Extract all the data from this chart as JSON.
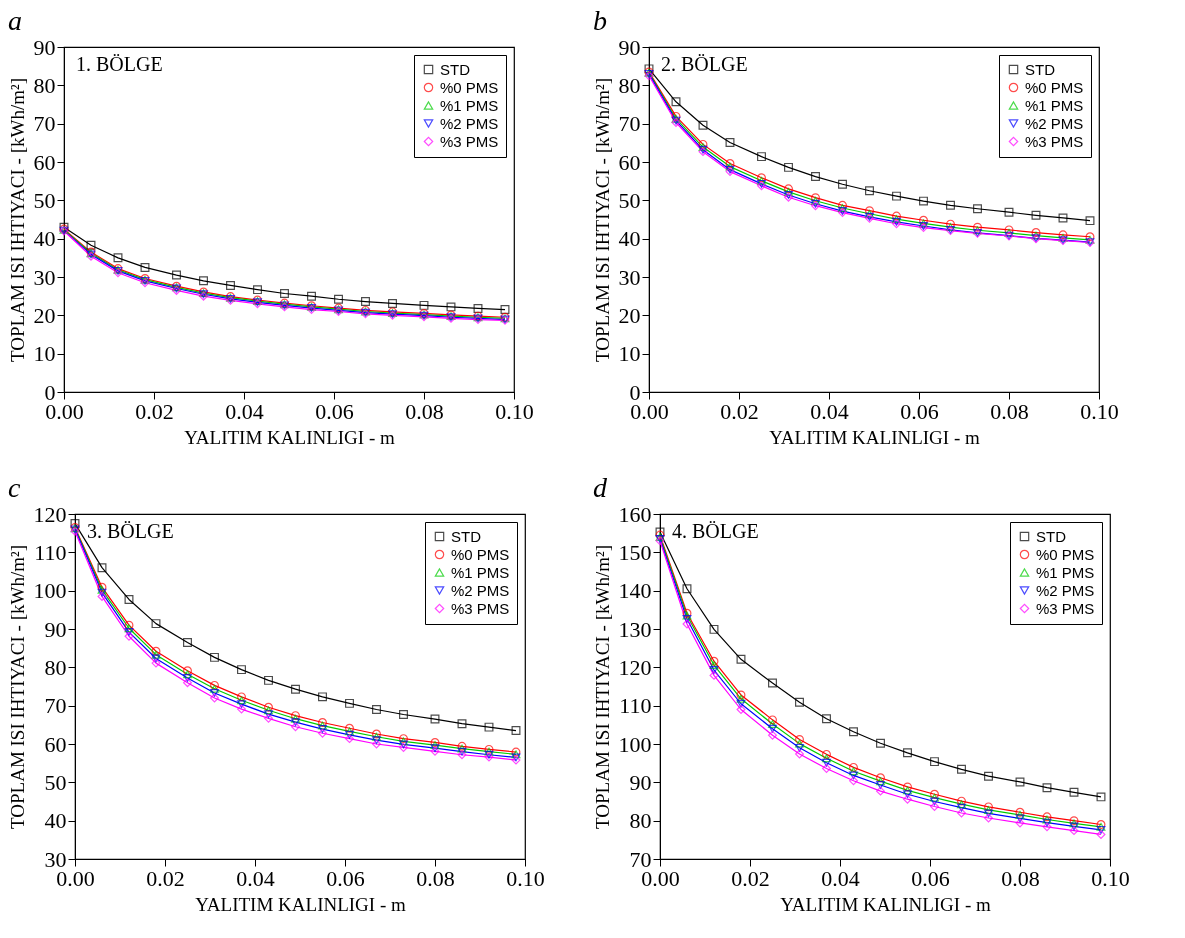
{
  "chart_data": [
    {
      "type": "line",
      "title": "a",
      "xlabel": "YALITIM KALINLIGI - m",
      "ylabel": "TOPLAM ISI IHTIYACI - [kWh/m²]",
      "annotations": [
        "1. BÖLGE"
      ],
      "legend": "top right",
      "grid": false,
      "x": [
        0,
        0.006,
        0.012,
        0.018,
        0.025,
        0.031,
        0.037,
        0.043,
        0.049,
        0.055,
        0.061,
        0.067,
        0.073,
        0.08,
        0.086,
        0.092,
        0.098
      ],
      "xlim": [
        0,
        0.1
      ],
      "xticks": [
        {
          "value": 0,
          "label": "0.00"
        },
        {
          "value": 0.02,
          "label": "0.02"
        },
        {
          "value": 0.04,
          "label": "0.04"
        },
        {
          "value": 0.06,
          "label": "0.06"
        },
        {
          "value": 0.08,
          "label": "0.08"
        },
        {
          "value": 0.1,
          "label": "0.10"
        }
      ],
      "ylim": [
        0,
        90
      ],
      "yticks": [
        0,
        10,
        20,
        30,
        40,
        50,
        60,
        70,
        80,
        90
      ],
      "series": [
        {
          "name": "STD",
          "color": "#000000",
          "marker": "square",
          "values": [
            43,
            38.3,
            35,
            32.5,
            30.5,
            29,
            27.8,
            26.7,
            25.7,
            25,
            24.2,
            23.6,
            23.1,
            22.6,
            22.2,
            21.8,
            21.5
          ]
        },
        {
          "name": "%0 PMS",
          "color": "#ff0000",
          "marker": "circle",
          "values": [
            42.5,
            36.5,
            32.2,
            29.6,
            27.6,
            26.1,
            24.9,
            24,
            23.2,
            22.5,
            21.9,
            21.3,
            20.9,
            20.5,
            20.1,
            19.8,
            19.5
          ]
        },
        {
          "name": "%1 PMS",
          "color": "#00cc00",
          "marker": "triangle",
          "values": [
            42.3,
            36.2,
            31.9,
            29.3,
            27.3,
            25.8,
            24.6,
            23.7,
            22.9,
            22.2,
            21.6,
            21,
            20.6,
            20.2,
            19.8,
            19.5,
            19.2
          ]
        },
        {
          "name": "%2 PMS",
          "color": "#0000ff",
          "marker": "triangle-down",
          "values": [
            42.1,
            35.9,
            31.6,
            29,
            27,
            25.5,
            24.3,
            23.4,
            22.6,
            21.9,
            21.3,
            20.7,
            20.3,
            19.9,
            19.5,
            19.2,
            18.9
          ]
        },
        {
          "name": "%3 PMS",
          "color": "#ff00ff",
          "marker": "diamond",
          "values": [
            42,
            35.4,
            31.1,
            28.5,
            26.5,
            25,
            23.9,
            23,
            22.2,
            21.5,
            21,
            20.4,
            20,
            19.6,
            19.2,
            18.9,
            18.7
          ]
        }
      ]
    },
    {
      "type": "line",
      "title": "b",
      "xlabel": "YALITIM KALINLIGI - m",
      "ylabel": "TOPLAM ISI IHTIYACI - [kWh/m²]",
      "annotations": [
        "2. BÖLGE"
      ],
      "legend": "top right",
      "grid": false,
      "x": [
        0,
        0.006,
        0.012,
        0.018,
        0.025,
        0.031,
        0.037,
        0.043,
        0.049,
        0.055,
        0.061,
        0.067,
        0.073,
        0.08,
        0.086,
        0.092,
        0.098
      ],
      "xlim": [
        0,
        0.1
      ],
      "xticks": [
        {
          "value": 0,
          "label": "0.00"
        },
        {
          "value": 0.02,
          "label": "0.02"
        },
        {
          "value": 0.04,
          "label": "0.04"
        },
        {
          "value": 0.06,
          "label": "0.06"
        },
        {
          "value": 0.08,
          "label": "0.08"
        },
        {
          "value": 0.1,
          "label": "0.10"
        }
      ],
      "ylim": [
        0,
        90
      ],
      "yticks": [
        0,
        10,
        20,
        30,
        40,
        50,
        60,
        70,
        80,
        90
      ],
      "series": [
        {
          "name": "STD",
          "color": "#000000",
          "marker": "square",
          "values": [
            84.3,
            75.7,
            69.6,
            65.1,
            61.4,
            58.6,
            56.2,
            54.2,
            52.5,
            51.1,
            49.8,
            48.7,
            47.8,
            46.9,
            46.1,
            45.4,
            44.7
          ]
        },
        {
          "name": "%0 PMS",
          "color": "#ff0000",
          "marker": "circle",
          "values": [
            83.5,
            71.9,
            64.6,
            59.6,
            55.9,
            53,
            50.7,
            48.7,
            47.3,
            45.9,
            44.8,
            43.8,
            43,
            42.3,
            41.6,
            41,
            40.5
          ]
        },
        {
          "name": "%1 PMS",
          "color": "#00cc00",
          "marker": "triangle",
          "values": [
            83.3,
            71.3,
            63.9,
            58.8,
            55.1,
            52.2,
            49.9,
            48,
            46.5,
            45.1,
            44,
            43,
            42.2,
            41.5,
            40.8,
            40.2,
            39.7
          ]
        },
        {
          "name": "%2 PMS",
          "color": "#0000ff",
          "marker": "triangle-down",
          "values": [
            83,
            70.8,
            63.2,
            58,
            54.3,
            51.4,
            49.1,
            47.2,
            45.7,
            44.4,
            43.3,
            42.3,
            41.5,
            40.8,
            40.1,
            39.6,
            39.1
          ]
        },
        {
          "name": "%3 PMS",
          "color": "#ff00ff",
          "marker": "diamond",
          "values": [
            82.5,
            70.3,
            62.7,
            57.5,
            53.8,
            50.8,
            48.6,
            46.8,
            45.3,
            43.9,
            42.9,
            42.1,
            41.4,
            40.7,
            40,
            39.5,
            39
          ]
        }
      ]
    },
    {
      "type": "line",
      "title": "c",
      "xlabel": "YALITIM KALINLIGI - m",
      "ylabel": "TOPLAM ISI IHTIYACI - [kWh/m²]",
      "annotations": [
        "3. BÖLGE"
      ],
      "legend": "top right",
      "grid": false,
      "x": [
        0,
        0.006,
        0.012,
        0.018,
        0.025,
        0.031,
        0.037,
        0.043,
        0.049,
        0.055,
        0.061,
        0.067,
        0.073,
        0.08,
        0.086,
        0.092,
        0.098
      ],
      "xlim": [
        0,
        0.1
      ],
      "xticks": [
        {
          "value": 0,
          "label": "0.00"
        },
        {
          "value": 0.02,
          "label": "0.02"
        },
        {
          "value": 0.04,
          "label": "0.04"
        },
        {
          "value": 0.06,
          "label": "0.06"
        },
        {
          "value": 0.08,
          "label": "0.08"
        },
        {
          "value": 0.1,
          "label": "0.10"
        }
      ],
      "ylim": [
        30,
        120
      ],
      "yticks": [
        30,
        40,
        50,
        60,
        70,
        80,
        90,
        100,
        110,
        120
      ],
      "series": [
        {
          "name": "STD",
          "color": "#000000",
          "marker": "square",
          "values": [
            117.5,
            106,
            97.7,
            91.4,
            86.5,
            82.6,
            79.4,
            76.6,
            74.3,
            72.3,
            70.6,
            69,
            67.7,
            66.5,
            65.3,
            64.4,
            63.5
          ]
        },
        {
          "name": "%0 PMS",
          "color": "#ff0000",
          "marker": "circle",
          "values": [
            116.5,
            100.9,
            91,
            84.2,
            79.1,
            75.3,
            72.3,
            69.6,
            67.4,
            65.6,
            64.1,
            62.6,
            61.4,
            60.4,
            59.4,
            58.6,
            57.9
          ]
        },
        {
          "name": "%1 PMS",
          "color": "#00cc00",
          "marker": "triangle",
          "values": [
            116.3,
            100.2,
            90.2,
            83.3,
            78.2,
            74.4,
            71.4,
            68.8,
            66.6,
            64.8,
            63.3,
            61.9,
            60.7,
            59.7,
            58.8,
            58,
            57.3
          ]
        },
        {
          "name": "%2 PMS",
          "color": "#0000ff",
          "marker": "triangle-down",
          "values": [
            116,
            99.5,
            89.2,
            82.3,
            77.2,
            73.3,
            70.4,
            67.8,
            65.7,
            63.9,
            62.4,
            61,
            59.9,
            58.9,
            58,
            57.2,
            56.5
          ]
        },
        {
          "name": "%3 PMS",
          "color": "#ff00ff",
          "marker": "diamond",
          "values": [
            115.5,
            98.5,
            88.1,
            81.1,
            76,
            72,
            69.1,
            66.7,
            64.5,
            62.8,
            61.4,
            60,
            59.1,
            58.1,
            57.2,
            56.6,
            55.8
          ]
        }
      ]
    },
    {
      "type": "line",
      "title": "d",
      "xlabel": "YALITIM KALINLIGI - m",
      "ylabel": "TOPLAM ISI IHTIYACI - [kWh/m²]",
      "annotations": [
        "4. BÖLGE"
      ],
      "legend": "top right",
      "grid": false,
      "x": [
        0,
        0.006,
        0.012,
        0.018,
        0.025,
        0.031,
        0.037,
        0.043,
        0.049,
        0.055,
        0.061,
        0.067,
        0.073,
        0.08,
        0.086,
        0.092,
        0.098
      ],
      "xlim": [
        0,
        0.1
      ],
      "xticks": [
        {
          "value": 0,
          "label": "0.00"
        },
        {
          "value": 0.02,
          "label": "0.02"
        },
        {
          "value": 0.04,
          "label": "0.04"
        },
        {
          "value": 0.06,
          "label": "0.06"
        },
        {
          "value": 0.08,
          "label": "0.08"
        },
        {
          "value": 0.1,
          "label": "0.10"
        }
      ],
      "ylim": [
        70,
        160
      ],
      "yticks": [
        70,
        80,
        90,
        100,
        110,
        120,
        130,
        140,
        150,
        160
      ],
      "series": [
        {
          "name": "STD",
          "color": "#000000",
          "marker": "square",
          "values": [
            155.3,
            140.5,
            129.9,
            122.1,
            115.9,
            110.9,
            106.6,
            103.2,
            100.2,
            97.7,
            95.4,
            93.4,
            91.6,
            90.1,
            88.6,
            87.4,
            86.2
          ]
        },
        {
          "name": "%0 PMS",
          "color": "#ff0000",
          "marker": "circle",
          "values": [
            154.5,
            134.1,
            121.6,
            112.8,
            106.3,
            101.2,
            97.3,
            93.9,
            91.2,
            88.8,
            86.9,
            85.1,
            83.6,
            82.2,
            81,
            80,
            79
          ]
        },
        {
          "name": "%1 PMS",
          "color": "#00cc00",
          "marker": "triangle",
          "values": [
            154,
            133.5,
            120.6,
            111.8,
            105.2,
            100.1,
            96.3,
            92.9,
            90.3,
            87.9,
            86,
            84.3,
            82.8,
            81.5,
            80.3,
            79.3,
            78.4
          ]
        },
        {
          "name": "%2 PMS",
          "color": "#0000ff",
          "marker": "triangle-down",
          "values": [
            153.5,
            132.6,
            119.3,
            110.5,
            104,
            99,
            95.1,
            91.8,
            89.3,
            86.9,
            85,
            83.4,
            81.9,
            80.6,
            79.5,
            78.5,
            77.6
          ]
        },
        {
          "name": "%3 PMS",
          "color": "#ff00ff",
          "marker": "diamond",
          "values": [
            153,
            131.3,
            117.9,
            109,
            102.3,
            97.4,
            93.6,
            90.4,
            87.7,
            85.6,
            83.7,
            82,
            80.7,
            79.4,
            78.4,
            77.4,
            76.4
          ]
        }
      ]
    }
  ]
}
